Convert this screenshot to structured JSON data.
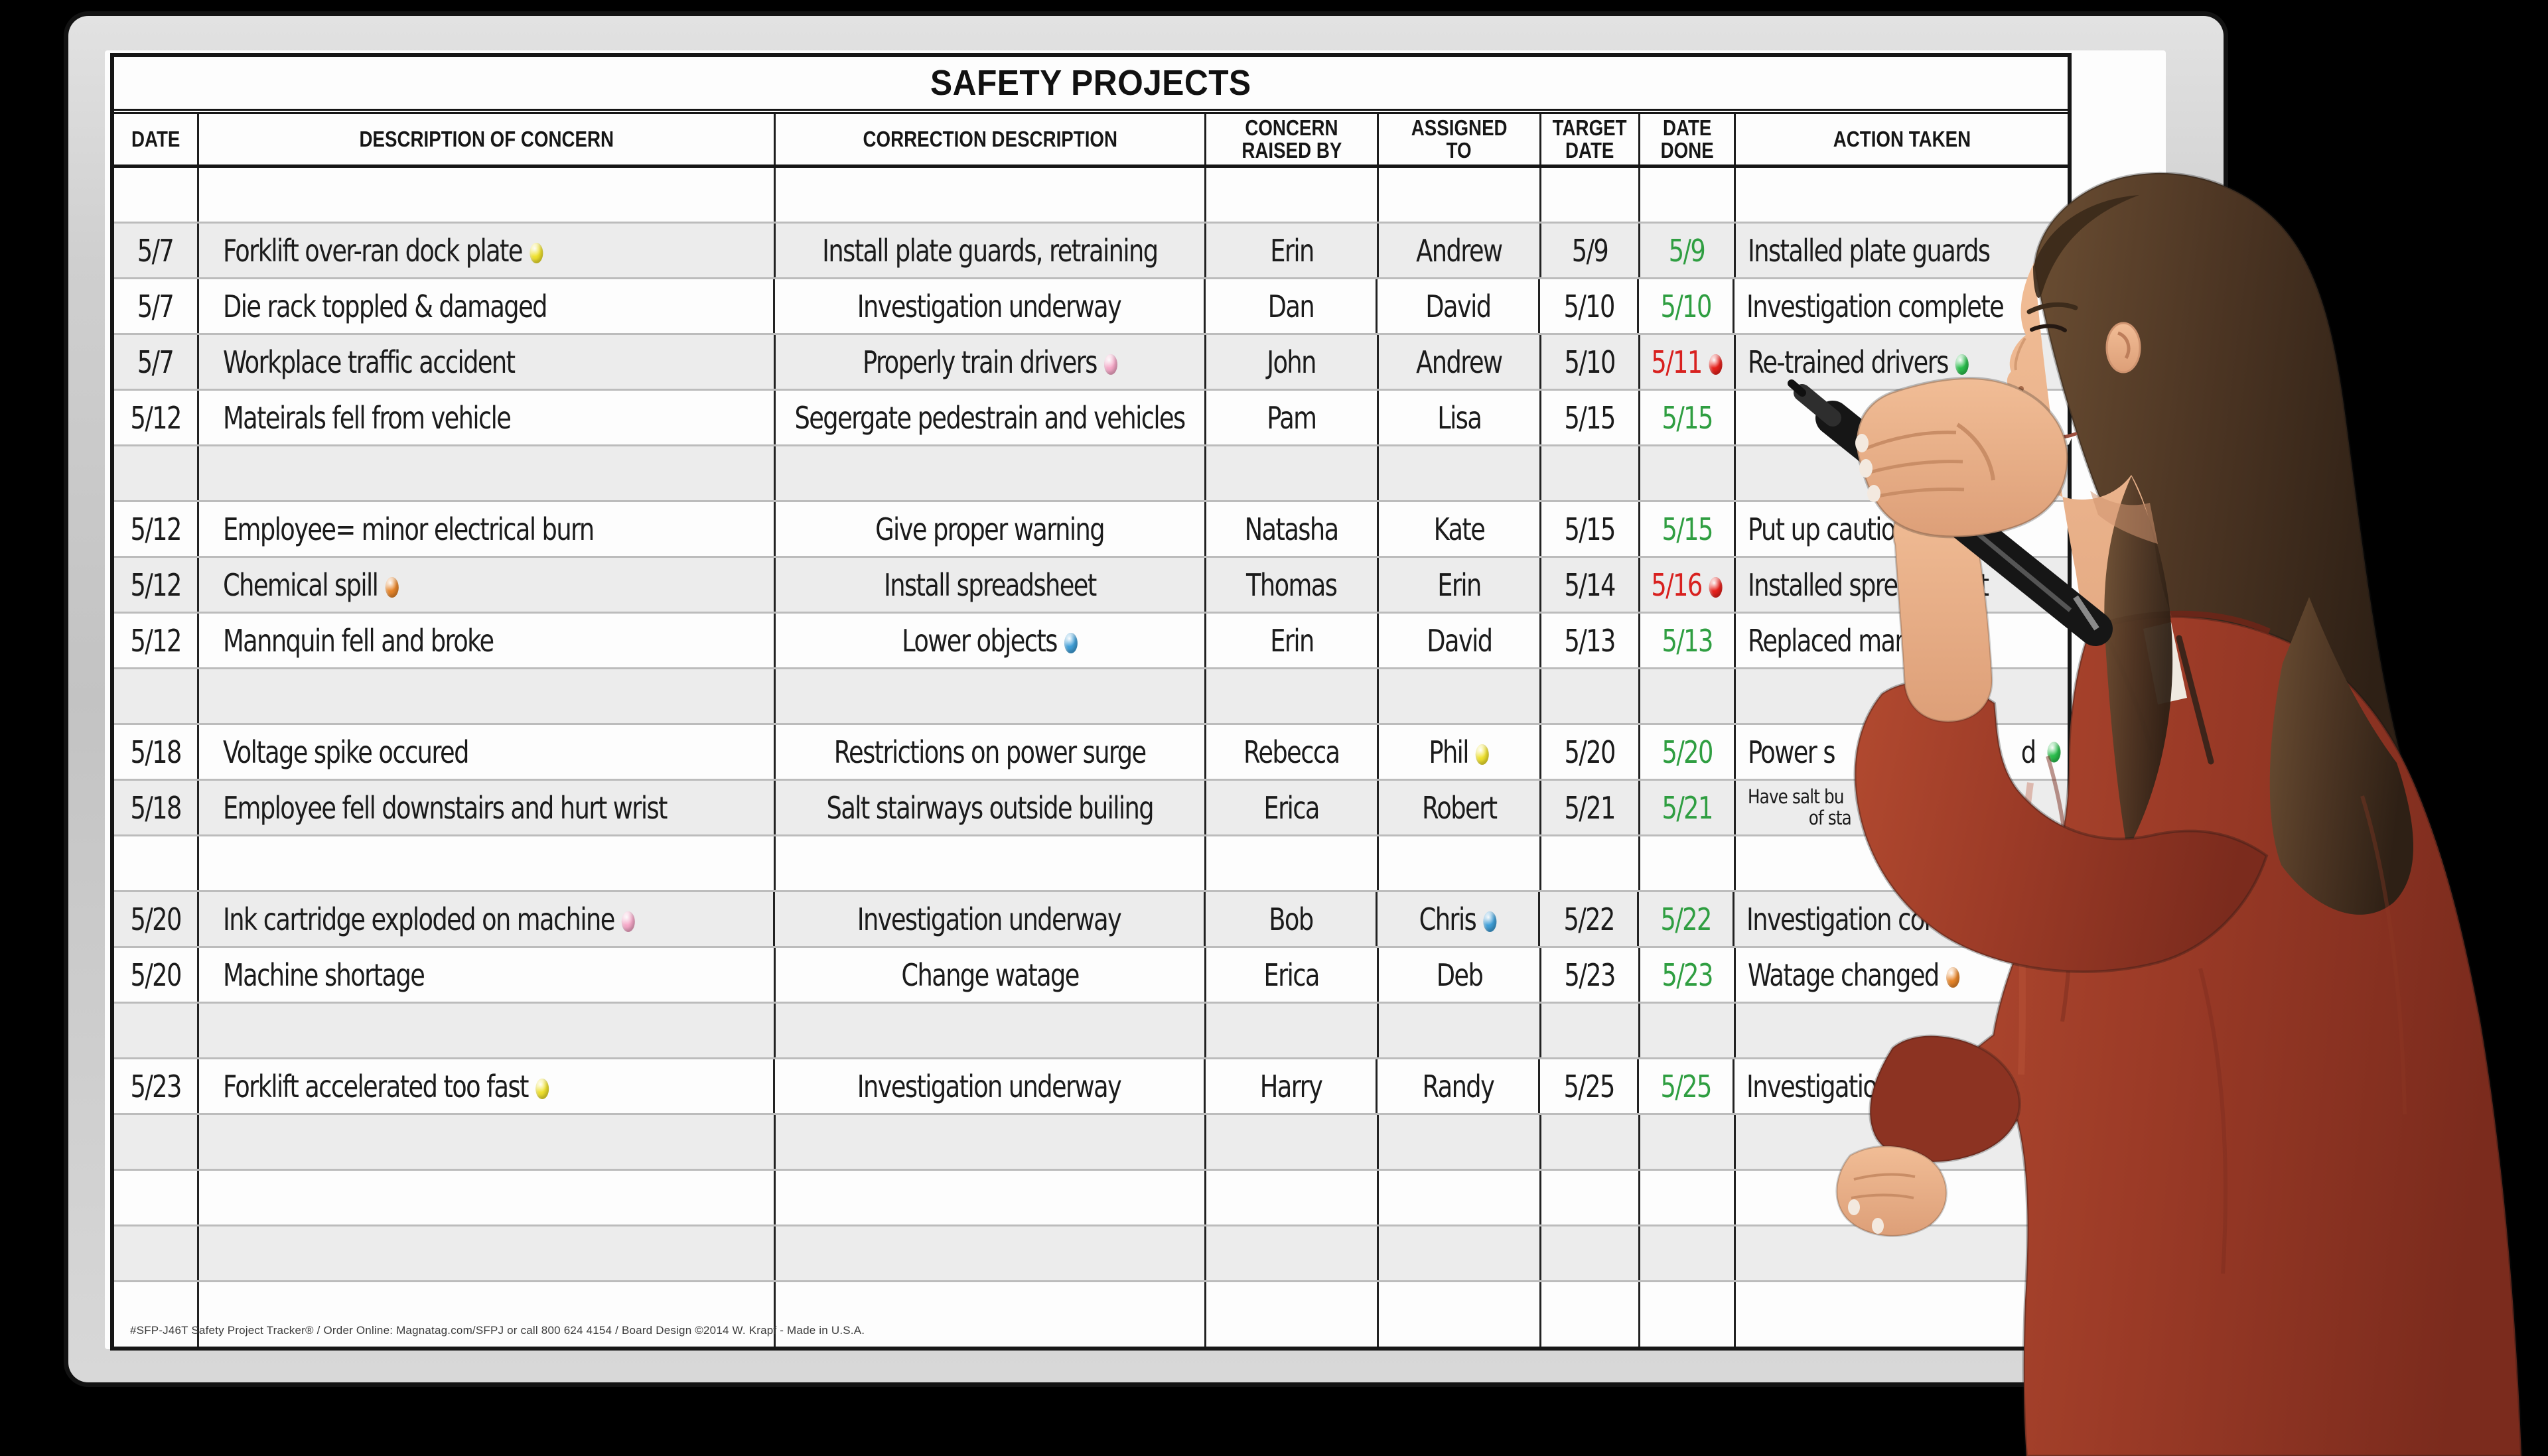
{
  "title": "SAFETY PROJECTS",
  "footer": "#SFP-J46T Safety Project Tracker® / Order Online: Magnatag.com/SFPJ or call 800 624 4154 / Board Design ©2014 W. Krapf - Made in U.S.A.",
  "columns": [
    {
      "key": "date",
      "label": [
        "DATE"
      ]
    },
    {
      "key": "desc",
      "label": [
        "DESCRIPTION OF CONCERN"
      ]
    },
    {
      "key": "corr",
      "label": [
        "CORRECTION DESCRIPTION"
      ]
    },
    {
      "key": "raised",
      "label": [
        "CONCERN",
        "RAISED BY"
      ]
    },
    {
      "key": "assigned",
      "label": [
        "ASSIGNED",
        "TO"
      ]
    },
    {
      "key": "target",
      "label": [
        "TARGET",
        "DATE"
      ]
    },
    {
      "key": "done",
      "label": [
        "DATE",
        "DONE"
      ]
    },
    {
      "key": "action",
      "label": [
        "ACTION TAKEN"
      ]
    }
  ],
  "colors": {
    "date_ontime": "#2f9e41",
    "date_late": "#d8211f",
    "dots": {
      "yellow": "#f0e22e",
      "pink": "#f6a8c8",
      "orange": "#e8862b",
      "blue": "#3f9fd8",
      "green": "#2bbf4d",
      "red": "#e8211c"
    }
  },
  "rows": [
    {
      "bg": "white"
    },
    {
      "bg": "gray",
      "date": "5/7",
      "desc": "Forklift over-ran dock plate",
      "desc_dot": "yellow",
      "corr": "Install plate guards, retraining",
      "raised": "Erin",
      "assigned": "Andrew",
      "target": "5/9",
      "done": "5/9",
      "done_status": "ontime",
      "action": "Installed plate guards"
    },
    {
      "bg": "white",
      "date": "5/7",
      "desc": "Die rack toppled & damaged",
      "corr": "Investigation underway",
      "raised": "Dan",
      "assigned": "David",
      "target": "5/10",
      "done": "5/10",
      "done_status": "ontime",
      "action": "Investigation complete"
    },
    {
      "bg": "gray",
      "date": "5/7",
      "desc": "Workplace traffic accident",
      "corr": "Properly train drivers",
      "corr_dot": "pink",
      "raised": "John",
      "assigned": "Andrew",
      "target": "5/10",
      "done": "5/11",
      "done_status": "late",
      "done_dot": "red",
      "action": "Re-trained drivers",
      "action_dot": "green"
    },
    {
      "bg": "white",
      "date": "5/12",
      "desc": "Mateirals fell from vehicle",
      "corr": "Segergate pedestrain and vehicles",
      "raised": "Pam",
      "assigned": "Lisa",
      "target": "5/15",
      "done": "5/15",
      "done_status": "ontime",
      "action": ""
    },
    {
      "bg": "gray"
    },
    {
      "bg": "white",
      "date": "5/12",
      "desc": "Employee= minor electrical burn",
      "corr": "Give proper warning",
      "raised": "Natasha",
      "assigned": "Kate",
      "target": "5/15",
      "done": "5/15",
      "done_status": "ontime",
      "action": "Put up caution signs"
    },
    {
      "bg": "gray",
      "date": "5/12",
      "desc": "Chemical spill",
      "desc_dot": "orange",
      "corr": "Install spreadsheet",
      "raised": "Thomas",
      "assigned": "Erin",
      "target": "5/14",
      "done": "5/16",
      "done_status": "late",
      "done_dot": "red",
      "action": "Installed spreadsheet"
    },
    {
      "bg": "white",
      "date": "5/12",
      "desc": "Mannquin fell and broke",
      "corr": "Lower objects",
      "corr_dot": "blue",
      "raised": "Erin",
      "assigned": "David",
      "target": "5/13",
      "done": "5/13",
      "done_status": "ontime",
      "action": "Replaced mannequin"
    },
    {
      "bg": "gray"
    },
    {
      "bg": "white",
      "date": "5/18",
      "desc": "Voltage spike occured",
      "corr": "Restrictions on power surge",
      "raised": "Rebecca",
      "assigned": "Phil",
      "assigned_dot": "yellow",
      "target": "5/20",
      "done": "5/20",
      "done_status": "ontime",
      "action": "Power s",
      "action_tail": "d",
      "action_dot": "green",
      "action_dot_right": true
    },
    {
      "bg": "gray",
      "date": "5/18",
      "desc": "Employee fell downstairs and hurt wrist",
      "corr": "Salt stairways outside builing",
      "raised": "Erica",
      "assigned": "Robert",
      "target": "5/21",
      "done": "5/21",
      "done_status": "ontime",
      "action_small": [
        "Have salt bu",
        "of sta"
      ]
    },
    {
      "bg": "white"
    },
    {
      "bg": "gray",
      "date": "5/20",
      "desc": "Ink cartridge exploded on machine",
      "desc_dot": "pink",
      "corr": "Investigation underway",
      "raised": "Bob",
      "assigned": "Chris",
      "assigned_dot": "blue",
      "target": "5/22",
      "done": "5/22",
      "done_status": "ontime",
      "action": "Investigation complete"
    },
    {
      "bg": "white",
      "date": "5/20",
      "desc": "Machine shortage",
      "corr": "Change watage",
      "raised": "Erica",
      "assigned": "Deb",
      "target": "5/23",
      "done": "5/23",
      "done_status": "ontime",
      "action": "Watage changed",
      "action_dot": "orange"
    },
    {
      "bg": "gray"
    },
    {
      "bg": "white",
      "date": "5/23",
      "desc": "Forklift accelerated too fast",
      "desc_dot": "yellow",
      "corr": "Investigation underway",
      "raised": "Harry",
      "assigned": "Randy",
      "target": "5/25",
      "done": "5/25",
      "done_status": "ontime",
      "action": "Investigation complete"
    },
    {
      "bg": "gray"
    },
    {
      "bg": "white"
    },
    {
      "bg": "gray"
    },
    {
      "bg": "white"
    }
  ]
}
